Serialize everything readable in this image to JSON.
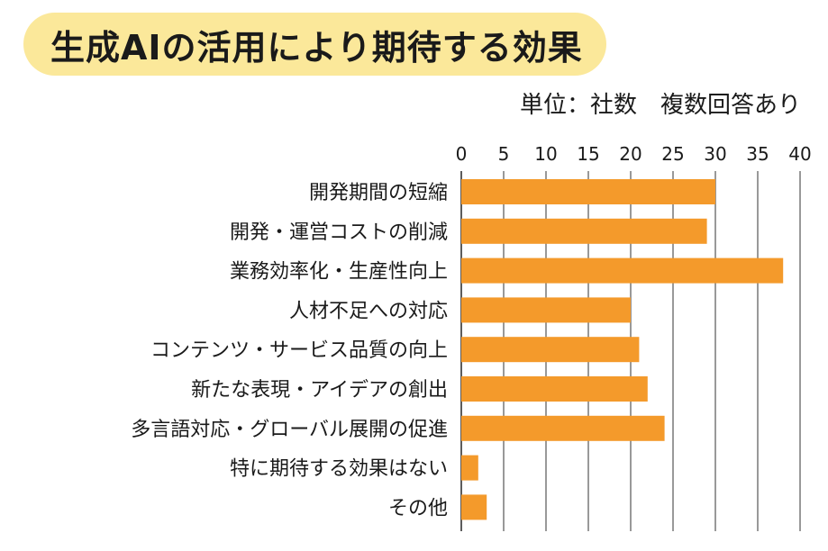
{
  "title": "生成AIの活用により期待する効果",
  "unit_note": "単位：社数　複数回答あり",
  "colors": {
    "bar": "#f49a2b",
    "title_bg": "#fbe89a",
    "grid": "#333333"
  },
  "chart_data": {
    "type": "bar",
    "orientation": "horizontal",
    "categories": [
      "開発期間の短縮",
      "開発・運営コストの削減",
      "業務効率化・生産性向上",
      "人材不足への対応",
      "コンテンツ・サービス品質の向上",
      "新たな表現・アイデアの創出",
      "多言語対応・グローバル展開の促進",
      "特に期待する効果はない",
      "その他"
    ],
    "values": [
      30,
      29,
      38,
      20,
      21,
      22,
      24,
      2,
      3
    ],
    "xlim": [
      0,
      40
    ],
    "xticks": [
      0,
      5,
      10,
      15,
      20,
      25,
      30,
      35,
      40
    ],
    "axis_position": "top",
    "grid": true
  }
}
